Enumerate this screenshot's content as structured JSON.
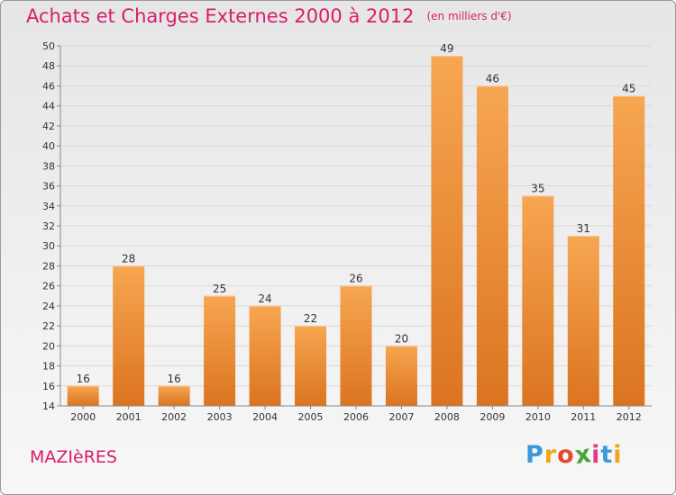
{
  "title": "Achats et Charges Externes 2000 à 2012",
  "unit": "(en milliers d'€)",
  "town": "MAZIèRES",
  "brand": {
    "letters": [
      "P",
      "r",
      "o",
      "x",
      "i",
      "t",
      "i"
    ],
    "colors": [
      "#3a9ad9",
      "#f0a51c",
      "#e34b2a",
      "#4aa53a",
      "#e23b8c",
      "#3a9ad9",
      "#f0a51c"
    ]
  },
  "colors": {
    "title": "#d81d6b",
    "bar_top": "#f7a651",
    "bar_bottom": "#db7420",
    "grid": "#d9d9d9"
  },
  "chart_data": {
    "type": "bar",
    "categories": [
      "2000",
      "2001",
      "2002",
      "2003",
      "2004",
      "2005",
      "2006",
      "2007",
      "2008",
      "2009",
      "2010",
      "2011",
      "2012"
    ],
    "values": [
      16,
      28,
      16,
      25,
      24,
      22,
      26,
      20,
      49,
      46,
      35,
      31,
      45
    ],
    "ylim": [
      14,
      50
    ],
    "yticks": [
      14,
      16,
      18,
      20,
      22,
      24,
      26,
      28,
      30,
      32,
      34,
      36,
      38,
      40,
      42,
      44,
      46,
      48,
      50
    ],
    "grid": true,
    "data_labels": true
  }
}
